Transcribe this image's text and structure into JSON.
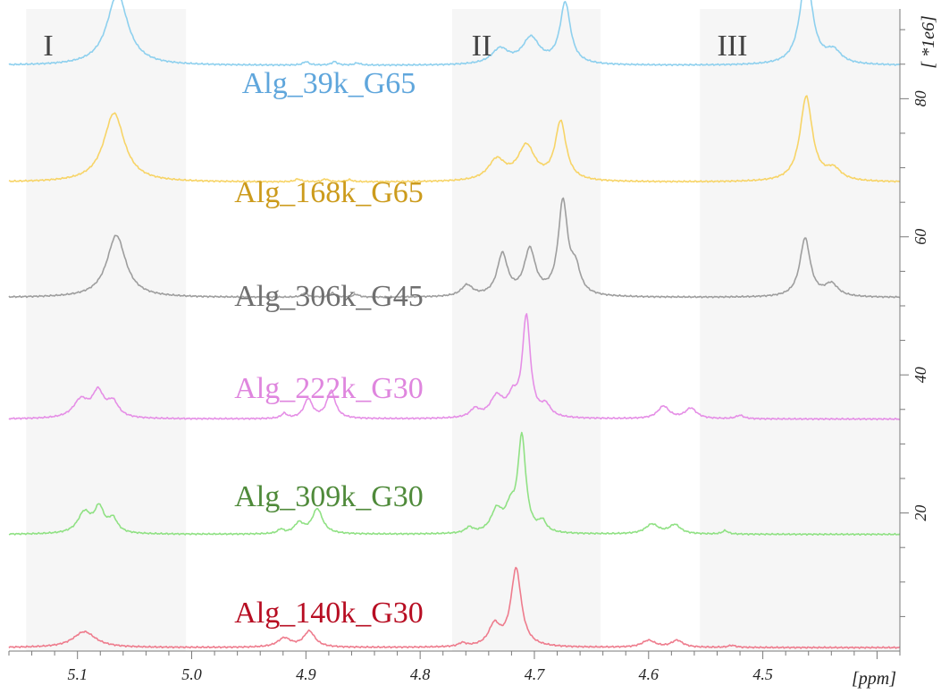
{
  "chart_data": {
    "type": "line",
    "title": "",
    "xlabel": "[ppm]",
    "ylabel": "[ *1e6]",
    "x_axis": {
      "reversed": true,
      "range": [
        5.16,
        4.38
      ],
      "ticks": [
        5.1,
        5.0,
        4.9,
        4.8,
        4.7,
        4.6,
        4.5
      ],
      "tick_labels": [
        "5.1",
        "5.0",
        "4.9",
        "4.8",
        "4.7",
        "4.6",
        "4.5"
      ]
    },
    "y_axis": {
      "position": "right",
      "range": [
        0,
        93
      ],
      "ticks": [
        20,
        40,
        60,
        80
      ],
      "tick_labels": [
        "20",
        "40",
        "60",
        "80"
      ],
      "label_rotated": true
    },
    "grid": false,
    "regions": [
      {
        "label": "I",
        "from": 5.145,
        "to": 5.005
      },
      {
        "label": "II",
        "from": 4.772,
        "to": 4.642
      },
      {
        "label": "III",
        "from": 4.555,
        "to": 4.38
      }
    ],
    "series": [
      {
        "name": "Alg_39k_G65",
        "color": "#8ed0ee",
        "label_color": "#5fa6dc",
        "baseline": 84.8,
        "peaks": [
          {
            "x": 5.065,
            "h": 10.4,
            "w": 0.011
          },
          {
            "x": 4.73,
            "h": 2.2,
            "w": 0.009
          },
          {
            "x": 4.703,
            "h": 3.8,
            "w": 0.009
          },
          {
            "x": 4.673,
            "h": 8.9,
            "w": 0.0055
          },
          {
            "x": 4.462,
            "h": 13.2,
            "w": 0.0065
          },
          {
            "x": 4.438,
            "h": 1.8,
            "w": 0.008
          },
          {
            "x": 4.9,
            "h": 0.5,
            "w": 0.003
          },
          {
            "x": 4.875,
            "h": 0.5,
            "w": 0.003
          },
          {
            "x": 4.855,
            "h": 0.3,
            "w": 0.003
          }
        ]
      },
      {
        "name": "Alg_168k_G65",
        "color": "#f7d467",
        "label_color": "#cc9b1c",
        "baseline": 67.9,
        "peaks": [
          {
            "x": 5.068,
            "h": 10.0,
            "w": 0.011
          },
          {
            "x": 4.733,
            "h": 3.0,
            "w": 0.009
          },
          {
            "x": 4.707,
            "h": 5.0,
            "w": 0.009
          },
          {
            "x": 4.677,
            "h": 8.5,
            "w": 0.0058
          },
          {
            "x": 4.462,
            "h": 12.3,
            "w": 0.0065
          },
          {
            "x": 4.438,
            "h": 1.6,
            "w": 0.008
          },
          {
            "x": 4.907,
            "h": 0.4,
            "w": 0.003
          },
          {
            "x": 4.883,
            "h": 0.4,
            "w": 0.003
          },
          {
            "x": 4.862,
            "h": 0.3,
            "w": 0.003
          }
        ]
      },
      {
        "name": "Alg_306k_G45",
        "color": "#9e9e9e",
        "label_color": "#6f6f6f",
        "baseline": 51.2,
        "peaks": [
          {
            "x": 5.066,
            "h": 9.0,
            "w": 0.01
          },
          {
            "x": 4.759,
            "h": 1.6,
            "w": 0.006
          },
          {
            "x": 4.728,
            "h": 6.0,
            "w": 0.0055
          },
          {
            "x": 4.704,
            "h": 6.6,
            "w": 0.006
          },
          {
            "x": 4.675,
            "h": 13.5,
            "w": 0.005
          },
          {
            "x": 4.664,
            "h": 3.5,
            "w": 0.005
          },
          {
            "x": 4.463,
            "h": 8.5,
            "w": 0.0055
          },
          {
            "x": 4.44,
            "h": 1.8,
            "w": 0.007
          },
          {
            "x": 4.901,
            "h": 0.6,
            "w": 0.003
          },
          {
            "x": 4.877,
            "h": 0.6,
            "w": 0.003
          },
          {
            "x": 4.856,
            "h": 0.4,
            "w": 0.003
          }
        ]
      },
      {
        "name": "Alg_222k_G30",
        "color": "#e58fe6",
        "label_color": "#df86de",
        "baseline": 33.6,
        "peaks": [
          {
            "x": 5.097,
            "h": 2.6,
            "w": 0.008
          },
          {
            "x": 5.082,
            "h": 3.6,
            "w": 0.006
          },
          {
            "x": 5.069,
            "h": 2.2,
            "w": 0.006
          },
          {
            "x": 4.898,
            "h": 2.8,
            "w": 0.0045
          },
          {
            "x": 4.878,
            "h": 4.0,
            "w": 0.0045
          },
          {
            "x": 4.919,
            "h": 0.7,
            "w": 0.003
          },
          {
            "x": 4.752,
            "h": 1.2,
            "w": 0.005
          },
          {
            "x": 4.733,
            "h": 3.0,
            "w": 0.007
          },
          {
            "x": 4.719,
            "h": 2.5,
            "w": 0.005
          },
          {
            "x": 4.707,
            "h": 14.6,
            "w": 0.0042
          },
          {
            "x": 4.69,
            "h": 1.6,
            "w": 0.005
          },
          {
            "x": 4.587,
            "h": 1.8,
            "w": 0.006
          },
          {
            "x": 4.563,
            "h": 1.5,
            "w": 0.006
          },
          {
            "x": 4.52,
            "h": 0.5,
            "w": 0.004
          }
        ]
      },
      {
        "name": "Alg_309k_G30",
        "color": "#90e184",
        "label_color": "#4f8a3a",
        "baseline": 16.9,
        "peaks": [
          {
            "x": 5.094,
            "h": 3.0,
            "w": 0.007
          },
          {
            "x": 5.081,
            "h": 3.5,
            "w": 0.005
          },
          {
            "x": 5.069,
            "h": 2.0,
            "w": 0.005
          },
          {
            "x": 4.906,
            "h": 1.5,
            "w": 0.005
          },
          {
            "x": 4.89,
            "h": 3.6,
            "w": 0.0055
          },
          {
            "x": 4.922,
            "h": 0.6,
            "w": 0.003
          },
          {
            "x": 4.757,
            "h": 0.8,
            "w": 0.004
          },
          {
            "x": 4.733,
            "h": 3.2,
            "w": 0.006
          },
          {
            "x": 4.721,
            "h": 3.0,
            "w": 0.005
          },
          {
            "x": 4.711,
            "h": 13.8,
            "w": 0.0042
          },
          {
            "x": 4.693,
            "h": 1.5,
            "w": 0.004
          },
          {
            "x": 4.597,
            "h": 1.4,
            "w": 0.007
          },
          {
            "x": 4.577,
            "h": 1.3,
            "w": 0.006
          },
          {
            "x": 4.533,
            "h": 0.5,
            "w": 0.003
          }
        ]
      },
      {
        "name": "Alg_140k_G30",
        "color": "#ee7c8d",
        "label_color": "#b70d22",
        "baseline": 0.5,
        "peaks": [
          {
            "x": 5.094,
            "h": 2.3,
            "w": 0.012
          },
          {
            "x": 4.919,
            "h": 1.3,
            "w": 0.007
          },
          {
            "x": 4.897,
            "h": 2.3,
            "w": 0.006
          },
          {
            "x": 4.763,
            "h": 0.5,
            "w": 0.004
          },
          {
            "x": 4.735,
            "h": 3.0,
            "w": 0.006
          },
          {
            "x": 4.716,
            "h": 11.3,
            "w": 0.0055
          },
          {
            "x": 4.6,
            "h": 1.0,
            "w": 0.007
          },
          {
            "x": 4.575,
            "h": 1.0,
            "w": 0.006
          },
          {
            "x": 4.527,
            "h": 0.3,
            "w": 0.004
          }
        ]
      }
    ]
  }
}
